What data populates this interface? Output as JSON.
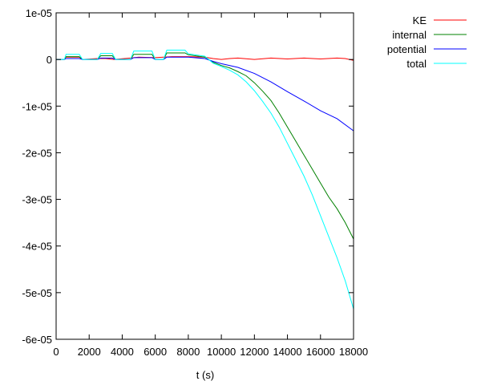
{
  "chart_data": {
    "type": "line",
    "title": "",
    "xlabel": "t (s)",
    "ylabel": "",
    "xlim": [
      0,
      18000
    ],
    "ylim": [
      -6e-05,
      1e-05
    ],
    "x_ticks": [
      0,
      2000,
      4000,
      6000,
      8000,
      10000,
      12000,
      14000,
      16000,
      18000
    ],
    "x_tick_labels": [
      "0",
      "2000",
      "4000",
      "6000",
      "8000",
      "10000",
      "12000",
      "14000",
      "16000",
      "18000"
    ],
    "y_ticks": [
      1e-05,
      0,
      -1e-05,
      -2e-05,
      -3e-05,
      -4e-05,
      -5e-05,
      -6e-05
    ],
    "y_tick_labels": [
      "1e-05",
      "0",
      "-1e-05",
      "-2e-05",
      "-3e-05",
      "-4e-05",
      "-5e-05",
      "-6e-05"
    ],
    "grid": false,
    "legend_position": "outside-top-right",
    "series": [
      {
        "name": "KE",
        "color": "#ff0000",
        "x": [
          0,
          500,
          600,
          1000,
          1400,
          1600,
          2500,
          3000,
          3500,
          4500,
          5000,
          6000,
          7000,
          8000,
          9000,
          9500,
          10000,
          10500,
          11000,
          12000,
          13000,
          14000,
          15000,
          16000,
          17000,
          17500,
          18000
        ],
        "y": [
          0,
          0,
          5e-07,
          5e-07,
          5e-07,
          0,
          2e-07,
          2e-07,
          0,
          3e-07,
          5e-07,
          4e-07,
          6e-07,
          6e-07,
          5e-07,
          2e-07,
          0,
          2e-07,
          3e-07,
          0,
          3e-07,
          1e-07,
          3e-07,
          1e-07,
          3e-07,
          2e-07,
          -2e-07
        ]
      },
      {
        "name": "internal",
        "color": "#008000",
        "x": [
          0,
          500,
          600,
          1400,
          1600,
          2500,
          2700,
          3400,
          3600,
          4500,
          4700,
          5800,
          6000,
          6500,
          6700,
          7800,
          8000,
          9000,
          9500,
          10000,
          10500,
          11000,
          11500,
          12000,
          12500,
          13000,
          13500,
          14000,
          14500,
          15000,
          15500,
          16000,
          16500,
          17000,
          17500,
          18000
        ],
        "y": [
          0,
          0,
          6e-07,
          6e-07,
          0,
          0,
          8e-07,
          8e-07,
          0,
          0,
          1.1e-06,
          1.1e-06,
          0,
          0,
          1.4e-06,
          1.4e-06,
          1e-06,
          5e-07,
          -6e-07,
          -1.3e-06,
          -1.8e-06,
          -2.6e-06,
          -3.5e-06,
          -5e-06,
          -6.8e-06,
          -8.8e-06,
          -1.15e-05,
          -1.45e-05,
          -1.75e-05,
          -2.05e-05,
          -2.35e-05,
          -2.65e-05,
          -2.95e-05,
          -3.2e-05,
          -3.5e-05,
          -3.85e-05
        ]
      },
      {
        "name": "potential",
        "color": "#0000ff",
        "x": [
          0,
          500,
          600,
          1400,
          1600,
          2500,
          2700,
          3400,
          3600,
          4500,
          4700,
          5800,
          6000,
          6500,
          6700,
          7800,
          8000,
          9000,
          9500,
          10000,
          11000,
          12000,
          13000,
          14000,
          15000,
          16000,
          17000,
          18000
        ],
        "y": [
          0,
          0,
          2e-07,
          2e-07,
          0,
          0,
          3e-07,
          3e-07,
          0,
          0,
          4e-07,
          4e-07,
          0,
          0,
          5e-07,
          5e-07,
          5e-07,
          2e-07,
          -4e-07,
          -9e-07,
          -1.7e-06,
          -3e-06,
          -4.8e-06,
          -6.9e-06,
          -8.9e-06,
          -1.1e-05,
          -1.27e-05,
          -1.53e-05
        ]
      },
      {
        "name": "total",
        "color": "#00ffff",
        "x": [
          0,
          500,
          600,
          1400,
          1600,
          2500,
          2700,
          3400,
          3600,
          4500,
          4700,
          5800,
          6000,
          6500,
          6700,
          7800,
          8000,
          9000,
          9500,
          10000,
          10500,
          11000,
          11500,
          12000,
          12500,
          13000,
          13500,
          14000,
          14500,
          15000,
          15500,
          16000,
          16500,
          17000,
          17500,
          18000
        ],
        "y": [
          0,
          0,
          1.1e-06,
          1.1e-06,
          0,
          0,
          1.3e-06,
          1.3e-06,
          0,
          0,
          1.8e-06,
          1.8e-06,
          0,
          0,
          2e-06,
          2e-06,
          1.2e-06,
          7e-07,
          -8e-07,
          -1.5e-06,
          -2.3e-06,
          -3.3e-06,
          -4.8e-06,
          -6.7e-06,
          -9e-06,
          -1.15e-05,
          -1.45e-05,
          -1.8e-05,
          -2.15e-05,
          -2.5e-05,
          -2.9e-05,
          -3.35e-05,
          -3.8e-05,
          -4.25e-05,
          -4.75e-05,
          -5.35e-05
        ]
      }
    ]
  }
}
